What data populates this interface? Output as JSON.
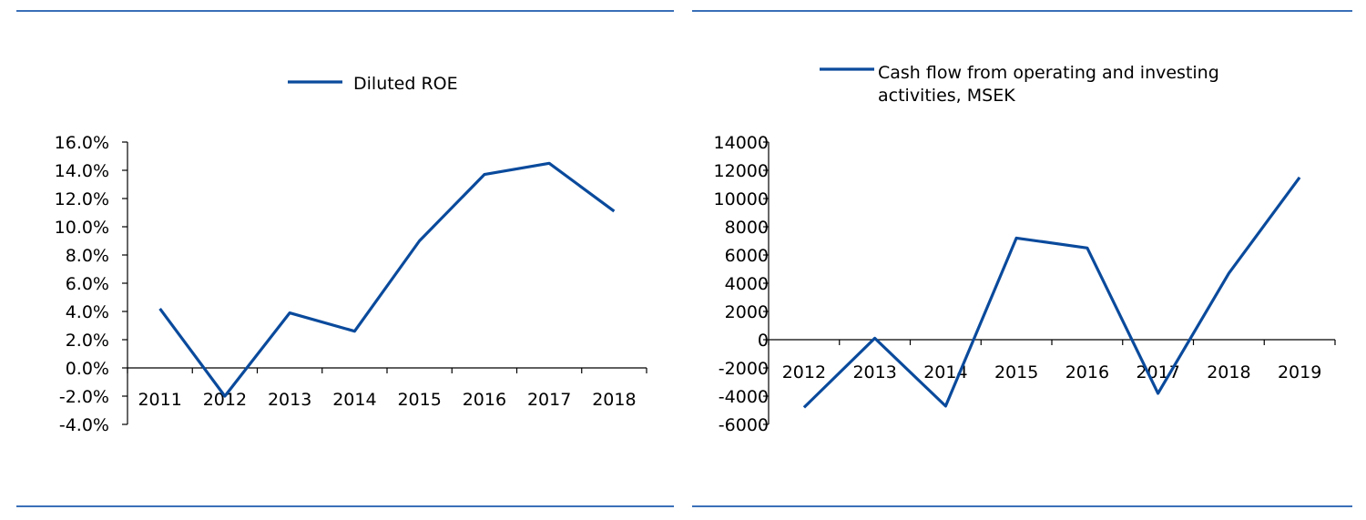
{
  "accent_color": "#0a4a9c",
  "rule_color": "#3a6fb8",
  "chart_data": [
    {
      "type": "line",
      "title": "",
      "xlabel": "",
      "ylabel": "",
      "categories": [
        "2011",
        "2012",
        "2013",
        "2014",
        "2015",
        "2016",
        "2017",
        "2018"
      ],
      "series": [
        {
          "name": "Diluted ROE",
          "values": [
            4.2,
            -2.0,
            3.9,
            2.6,
            9.0,
            13.7,
            14.5,
            11.1
          ]
        }
      ],
      "y_ticks": [
        "16.0%",
        "14.0%",
        "12.0%",
        "10.0%",
        "8.0%",
        "6.0%",
        "4.0%",
        "2.0%",
        "0.0%",
        "-2.0%",
        "-4.0%"
      ],
      "ylim": [
        -4,
        16
      ],
      "grid": false,
      "legend": "top"
    },
    {
      "type": "line",
      "title": "",
      "xlabel": "",
      "ylabel": "",
      "categories": [
        "2012",
        "2013",
        "2014",
        "2015",
        "2016",
        "2017",
        "2018",
        "2019"
      ],
      "series": [
        {
          "name": "Cash flow from operating and investing activities, MSEK",
          "values": [
            -4800,
            100,
            -4700,
            7200,
            6500,
            -3800,
            4700,
            11500
          ]
        }
      ],
      "y_ticks": [
        "14000",
        "12000",
        "10000",
        "8000",
        "6000",
        "4000",
        "2000",
        "0",
        "-2000",
        "-4000",
        "-6000"
      ],
      "ylim": [
        -6000,
        14000
      ],
      "grid": false,
      "legend": "top"
    }
  ],
  "legend_lines": [
    [
      "Diluted ROE"
    ],
    [
      "Cash flow from operating and investing",
      "activities, MSEK"
    ]
  ]
}
